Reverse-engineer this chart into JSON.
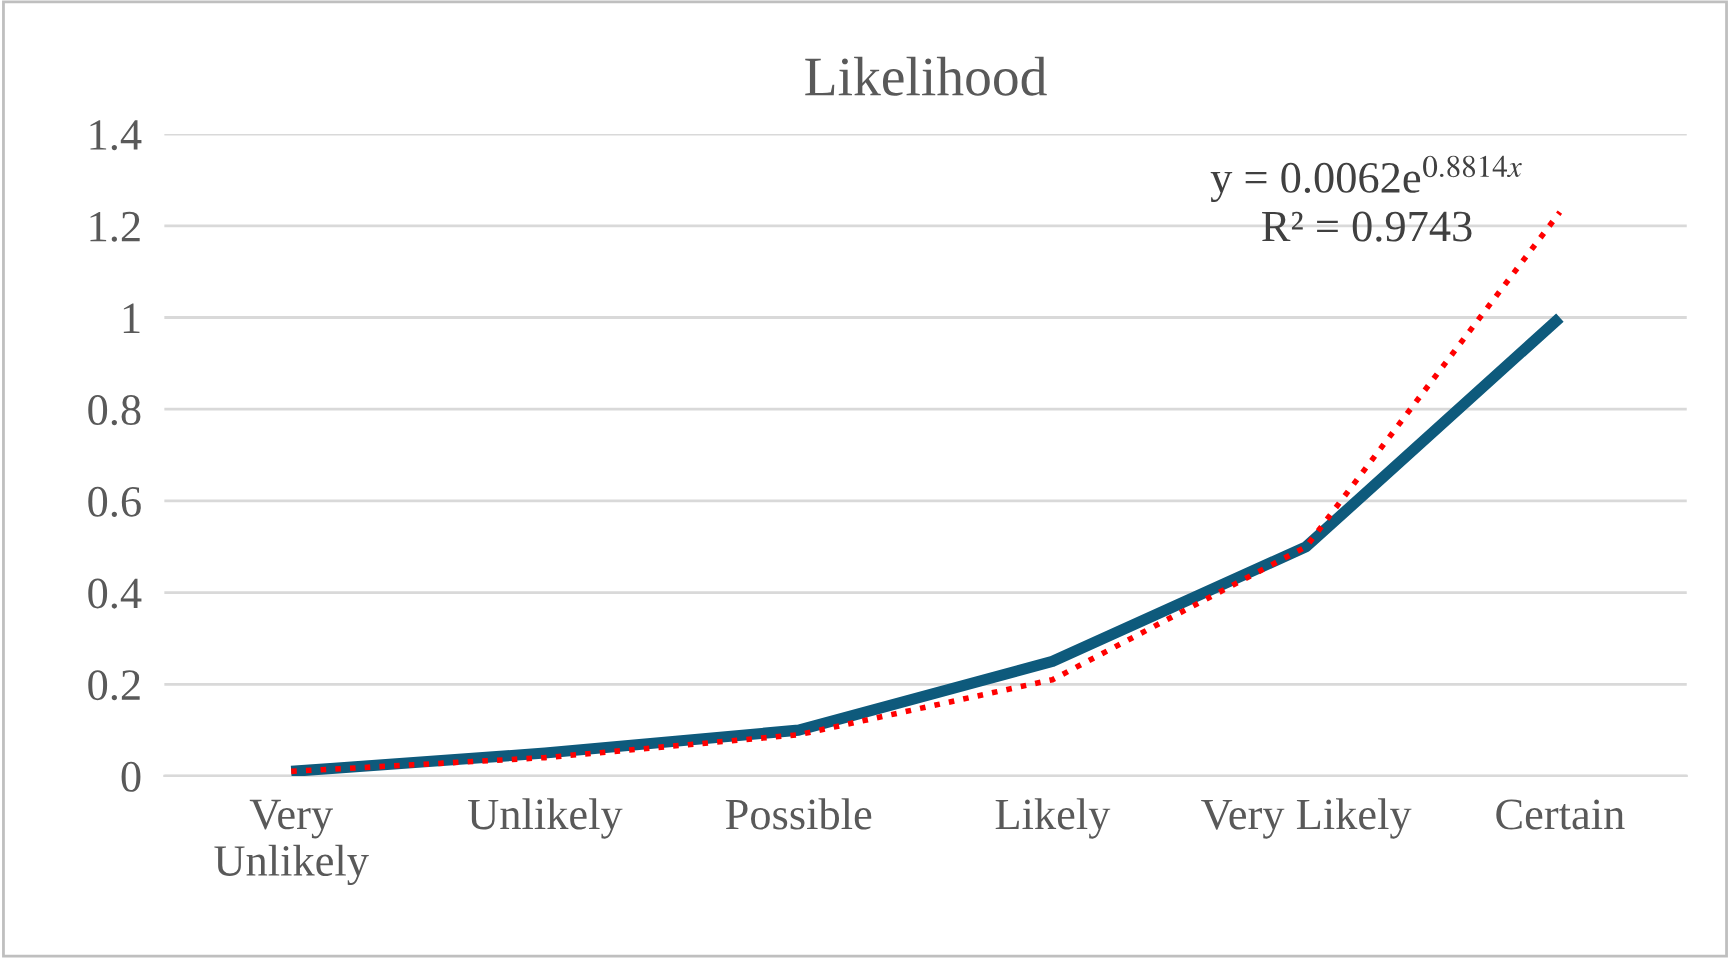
{
  "chart_data": {
    "type": "line",
    "title": "Likelihood",
    "categories": [
      "Very\nUnlikely",
      "Unlikely",
      "Possible",
      "Likely",
      "Very Likely",
      "Certain"
    ],
    "series": [
      {
        "color": "#0e5a7c",
        "values": [
          0.01,
          0.05,
          0.1,
          0.25,
          0.5,
          1
        ],
        "line_style": "solid"
      },
      {
        "color": "#ff0000",
        "values": [
          0.01,
          0.04,
          0.09,
          0.21,
          0.5,
          1.23
        ],
        "line_style": "dotted"
      }
    ],
    "annotations": [
      "y = 0.0062e$^{0.8814x}$",
      "R² = 0.9743"
    ],
    "ylim": [
      0,
      1.4
    ],
    "yticks": [
      0,
      0.2,
      0.4,
      0.6,
      0.8,
      1,
      1.2,
      1.4
    ],
    "grid": "y",
    "legend": false,
    "marker": "none"
  }
}
